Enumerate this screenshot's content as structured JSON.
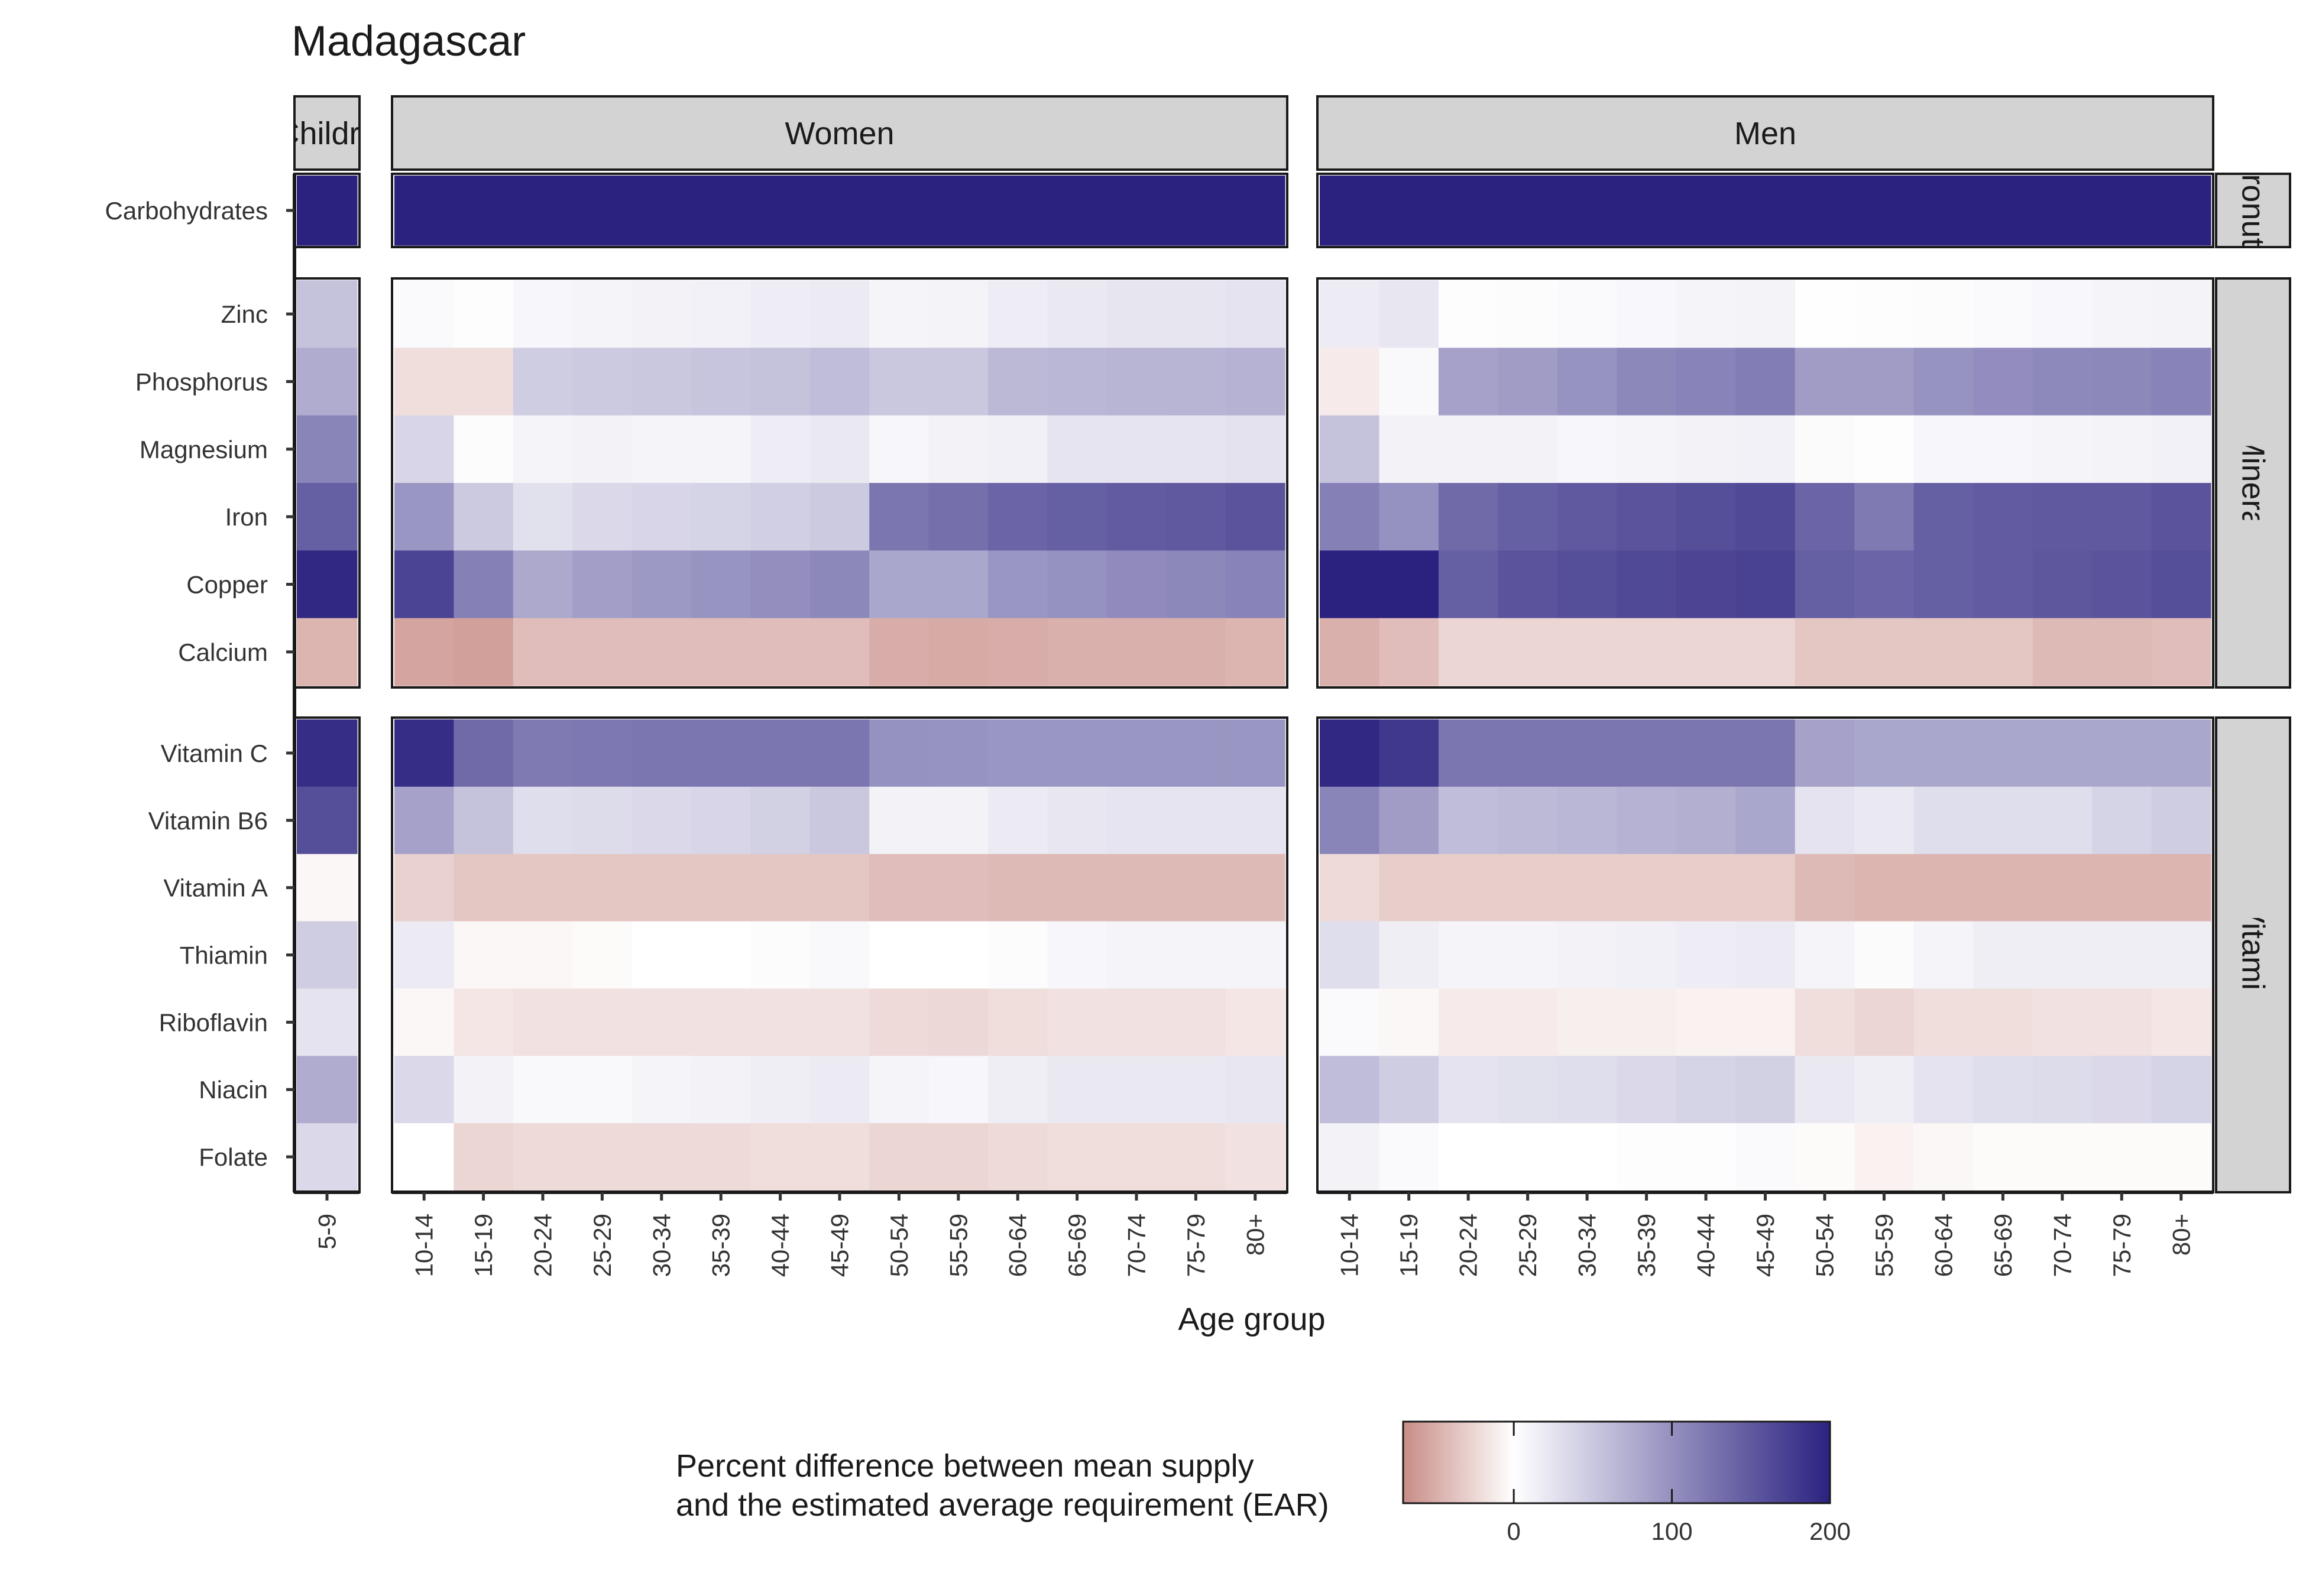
{
  "chart_data": {
    "type": "heatmap",
    "title": "Madagascar",
    "xlabel": "Age group",
    "ylabel": "",
    "legend": {
      "title_lines": [
        "Percent difference between mean supply",
        "and the estimated average requirement (EAR)"
      ],
      "min": -70,
      "max": 200,
      "ticks": [
        0,
        100,
        200
      ],
      "colors": {
        "low": "#c88c86",
        "mid": "#ffffff",
        "high": "#2b2280"
      }
    },
    "column_panels": [
      {
        "name": "Children",
        "display_label": "Childre",
        "categories": [
          "5-9"
        ]
      },
      {
        "name": "Women",
        "display_label": "Women",
        "categories": [
          "10-14",
          "15-19",
          "20-24",
          "25-29",
          "30-34",
          "35-39",
          "40-44",
          "45-49",
          "50-54",
          "55-59",
          "60-64",
          "65-69",
          "70-74",
          "75-79",
          "80+"
        ]
      },
      {
        "name": "Men",
        "display_label": "Men",
        "categories": [
          "10-14",
          "15-19",
          "20-24",
          "25-29",
          "30-34",
          "35-39",
          "40-44",
          "45-49",
          "50-54",
          "55-59",
          "60-64",
          "65-69",
          "70-74",
          "75-79",
          "80+"
        ]
      }
    ],
    "row_panels": [
      {
        "name": "Macronutrient",
        "display_label": "ronut",
        "rows": [
          "Carbohydrates"
        ]
      },
      {
        "name": "Mineral",
        "display_label": "Mineral",
        "rows": [
          "Zinc",
          "Phosphorus",
          "Magnesium",
          "Iron",
          "Copper",
          "Calcium"
        ]
      },
      {
        "name": "Vitamin",
        "display_label": "Vitamin",
        "rows": [
          "Vitamin C",
          "Vitamin B6",
          "Vitamin A",
          "Thiamin",
          "Riboflavin",
          "Niacin",
          "Folate"
        ]
      }
    ],
    "values": {
      "Carbohydrates": {
        "Children": [
          200
        ],
        "Women": [
          200,
          200,
          200,
          200,
          200,
          200,
          200,
          200,
          200,
          200,
          200,
          200,
          200,
          200,
          200
        ],
        "Men": [
          200,
          200,
          200,
          200,
          200,
          200,
          200,
          200,
          200,
          200,
          200,
          200,
          200,
          200,
          200
        ]
      },
      "Zinc": {
        "Children": [
          55
        ],
        "Women": [
          5,
          2,
          8,
          10,
          12,
          13,
          16,
          18,
          9,
          11,
          16,
          20,
          23,
          23,
          25
        ],
        "Men": [
          17,
          22,
          2,
          3,
          5,
          7,
          9,
          11,
          1,
          -1,
          3,
          5,
          7,
          9,
          11
        ]
      },
      "Phosphorus": {
        "Children": [
          75
        ],
        "Women": [
          -20,
          -20,
          45,
          48,
          50,
          53,
          55,
          60,
          50,
          50,
          63,
          65,
          67,
          68,
          70
        ],
        "Men": [
          -12,
          6,
          85,
          90,
          98,
          108,
          112,
          118,
          90,
          90,
          98,
          103,
          107,
          108,
          112
        ]
      },
      "Magnesium": {
        "Children": [
          110
        ],
        "Women": [
          38,
          -2,
          10,
          12,
          10,
          10,
          16,
          20,
          8,
          12,
          14,
          24,
          24,
          24,
          26
        ],
        "Men": [
          55,
          12,
          12,
          12,
          8,
          10,
          12,
          13,
          4,
          2,
          8,
          8,
          10,
          11,
          13
        ]
      },
      "Iron": {
        "Children": [
          145
        ],
        "Women": [
          95,
          48,
          28,
          35,
          38,
          40,
          43,
          48,
          125,
          130,
          140,
          145,
          148,
          150,
          155
        ],
        "Men": [
          115,
          100,
          135,
          145,
          150,
          155,
          160,
          165,
          140,
          120,
          145,
          148,
          150,
          150,
          155
        ]
      },
      "Copper": {
        "Children": [
          195
        ],
        "Women": [
          170,
          115,
          78,
          88,
          92,
          97,
          102,
          108,
          80,
          80,
          95,
          100,
          105,
          108,
          112
        ],
        "Men": [
          200,
          200,
          145,
          155,
          160,
          165,
          168,
          172,
          145,
          140,
          145,
          148,
          152,
          155,
          160
        ]
      },
      "Calcium": {
        "Children": [
          -45
        ],
        "Women": [
          -55,
          -58,
          -40,
          -40,
          -40,
          -40,
          -40,
          -40,
          -50,
          -52,
          -50,
          -48,
          -48,
          -48,
          -45
        ],
        "Men": [
          -48,
          -40,
          -25,
          -25,
          -25,
          -25,
          -25,
          -25,
          -35,
          -35,
          -35,
          -35,
          -42,
          -42,
          -40
        ]
      },
      "Vitamin C": {
        "Children": [
          190
        ],
        "Women": [
          190,
          135,
          120,
          122,
          125,
          125,
          125,
          125,
          100,
          98,
          95,
          95,
          95,
          95,
          95
        ],
        "Men": [
          195,
          180,
          125,
          125,
          125,
          125,
          125,
          125,
          85,
          80,
          80,
          80,
          80,
          80,
          80
        ]
      },
      "Vitamin B6": {
        "Children": [
          160
        ],
        "Women": [
          85,
          55,
          30,
          32,
          35,
          38,
          42,
          50,
          12,
          12,
          18,
          22,
          24,
          24,
          24
        ],
        "Men": [
          110,
          90,
          60,
          62,
          65,
          70,
          72,
          80,
          25,
          20,
          30,
          30,
          30,
          40,
          45
        ]
      },
      "Vitamin A": {
        "Children": [
          -5
        ],
        "Women": [
          -28,
          -35,
          -35,
          -35,
          -35,
          -35,
          -35,
          -35,
          -40,
          -40,
          -42,
          -42,
          -42,
          -42,
          -42
        ],
        "Men": [
          -22,
          -30,
          -30,
          -30,
          -30,
          -30,
          -30,
          -30,
          -42,
          -45,
          -45,
          -45,
          -45,
          -45,
          -45
        ]
      },
      "Thiamin": {
        "Children": [
          45
        ],
        "Women": [
          18,
          -5,
          -5,
          -3,
          0,
          0,
          3,
          6,
          0,
          0,
          3,
          8,
          10,
          10,
          10
        ],
        "Men": [
          30,
          15,
          10,
          10,
          12,
          14,
          16,
          18,
          10,
          4,
          10,
          15,
          15,
          15,
          15
        ]
      },
      "Riboflavin": {
        "Children": [
          25
        ],
        "Women": [
          -5,
          -15,
          -18,
          -18,
          -18,
          -18,
          -18,
          -18,
          -22,
          -24,
          -20,
          -18,
          -18,
          -18,
          -15
        ],
        "Men": [
          5,
          -5,
          -12,
          -12,
          -10,
          -10,
          -8,
          -8,
          -20,
          -25,
          -20,
          -20,
          -18,
          -18,
          -15
        ]
      },
      "Niacin": {
        "Children": [
          75
        ],
        "Women": [
          35,
          12,
          6,
          6,
          10,
          12,
          15,
          18,
          10,
          8,
          15,
          20,
          20,
          20,
          22
        ],
        "Men": [
          60,
          45,
          25,
          28,
          30,
          35,
          40,
          42,
          20,
          15,
          25,
          30,
          32,
          35,
          40
        ]
      },
      "Folate": {
        "Children": [
          35
        ],
        "Women": [
          0,
          -25,
          -22,
          -22,
          -22,
          -22,
          -20,
          -20,
          -25,
          -25,
          -22,
          -20,
          -20,
          -20,
          -18
        ],
        "Men": [
          12,
          5,
          0,
          0,
          0,
          2,
          2,
          5,
          -3,
          -8,
          -5,
          -3,
          -3,
          -3,
          -3
        ]
      }
    }
  }
}
